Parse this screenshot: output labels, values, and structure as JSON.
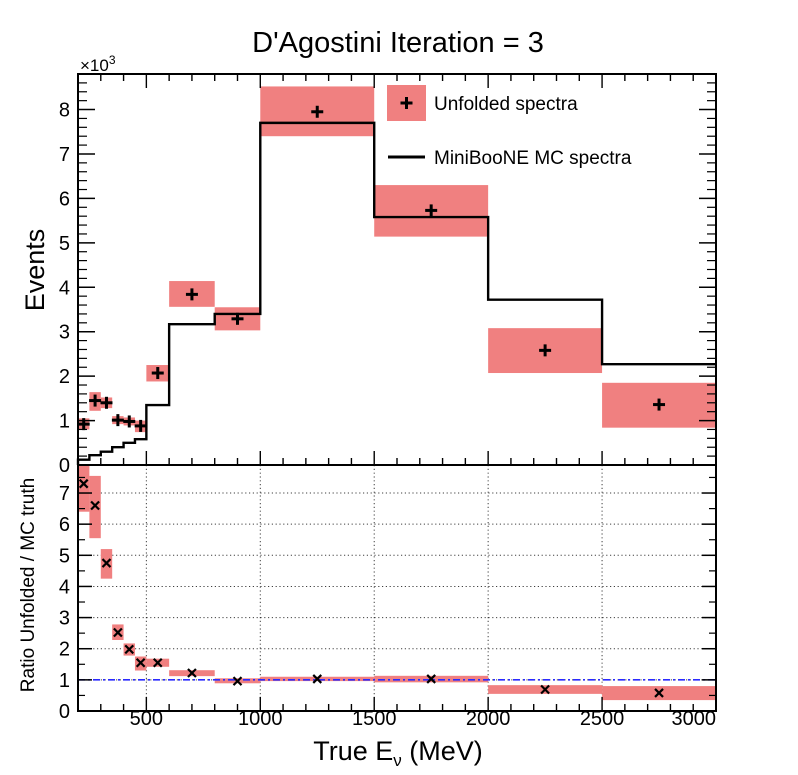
{
  "chart_data": {
    "type": "histogram",
    "title": "D'Agostini Iteration = 3",
    "top_panel": {
      "ylabel": "Events",
      "y_multiplier_label": "×10",
      "y_multiplier_exponent": "3",
      "ylim": [
        0,
        8.8
      ],
      "yticks": [
        0,
        1,
        2,
        3,
        4,
        5,
        6,
        7,
        8
      ],
      "ytick_labels": [
        "0",
        "1",
        "2",
        "3",
        "4",
        "5",
        "6",
        "7",
        "8"
      ],
      "legend_position": "top-right",
      "legend": [
        {
          "label": "Unfolded spectra",
          "style": "marker-with-box"
        },
        {
          "label": "MiniBooNE MC spectra",
          "style": "line"
        }
      ],
      "unfolded": [
        {
          "x_lo": 200,
          "x_hi": 250,
          "value": 0.92,
          "err_lo": 0.8,
          "err_hi": 1.05
        },
        {
          "x_lo": 250,
          "x_hi": 300,
          "value": 1.45,
          "err_lo": 1.22,
          "err_hi": 1.64
        },
        {
          "x_lo": 300,
          "x_hi": 350,
          "value": 1.4,
          "err_lo": 1.28,
          "err_hi": 1.52
        },
        {
          "x_lo": 350,
          "x_hi": 400,
          "value": 1.01,
          "err_lo": 0.92,
          "err_hi": 1.1
        },
        {
          "x_lo": 400,
          "x_hi": 450,
          "value": 0.98,
          "err_lo": 0.89,
          "err_hi": 1.07
        },
        {
          "x_lo": 450,
          "x_hi": 500,
          "value": 0.88,
          "err_lo": 0.74,
          "err_hi": 1.0
        },
        {
          "x_lo": 500,
          "x_hi": 600,
          "value": 2.07,
          "err_lo": 1.88,
          "err_hi": 2.25
        },
        {
          "x_lo": 600,
          "x_hi": 800,
          "value": 3.84,
          "err_lo": 3.56,
          "err_hi": 4.14
        },
        {
          "x_lo": 800,
          "x_hi": 1000,
          "value": 3.29,
          "err_lo": 3.03,
          "err_hi": 3.55
        },
        {
          "x_lo": 1000,
          "x_hi": 1500,
          "value": 7.95,
          "err_lo": 7.4,
          "err_hi": 8.52
        },
        {
          "x_lo": 1500,
          "x_hi": 2000,
          "value": 5.73,
          "err_lo": 5.14,
          "err_hi": 6.3
        },
        {
          "x_lo": 2000,
          "x_hi": 2500,
          "value": 2.58,
          "err_lo": 2.07,
          "err_hi": 3.08
        },
        {
          "x_lo": 2500,
          "x_hi": 3000,
          "value": 1.36,
          "err_lo": 0.84,
          "err_hi": 1.85
        }
      ],
      "mc_spectrum": {
        "edges": [
          200,
          250,
          300,
          350,
          400,
          450,
          500,
          600,
          800,
          1000,
          1500,
          2000,
          2500,
          3000
        ],
        "values": [
          0.12,
          0.22,
          0.3,
          0.4,
          0.5,
          0.58,
          1.35,
          3.17,
          3.4,
          7.7,
          5.58,
          3.72,
          2.27
        ]
      }
    },
    "bottom_panel": {
      "ylabel": "Ratio Unfolded / MC truth",
      "ylim": [
        0,
        7.9
      ],
      "yticks": [
        0,
        1,
        2,
        3,
        4,
        5,
        6,
        7
      ],
      "ytick_labels": [
        "0",
        "1",
        "2",
        "3",
        "4",
        "5",
        "6",
        "7"
      ],
      "grid": true,
      "reference_line": 1.0,
      "reference_line_style": "blue dash-dot",
      "ratios": [
        {
          "x_lo": 200,
          "x_hi": 250,
          "value": 7.3,
          "err_lo": 6.4,
          "err_hi": 7.9
        },
        {
          "x_lo": 250,
          "x_hi": 300,
          "value": 6.6,
          "err_lo": 5.55,
          "err_hi": 7.55
        },
        {
          "x_lo": 300,
          "x_hi": 350,
          "value": 4.75,
          "err_lo": 4.25,
          "err_hi": 5.2
        },
        {
          "x_lo": 350,
          "x_hi": 400,
          "value": 2.52,
          "err_lo": 2.28,
          "err_hi": 2.78
        },
        {
          "x_lo": 400,
          "x_hi": 450,
          "value": 1.98,
          "err_lo": 1.78,
          "err_hi": 2.17
        },
        {
          "x_lo": 450,
          "x_hi": 500,
          "value": 1.55,
          "err_lo": 1.3,
          "err_hi": 1.75
        },
        {
          "x_lo": 500,
          "x_hi": 600,
          "value": 1.55,
          "err_lo": 1.42,
          "err_hi": 1.68
        },
        {
          "x_lo": 600,
          "x_hi": 800,
          "value": 1.22,
          "err_lo": 1.12,
          "err_hi": 1.31
        },
        {
          "x_lo": 800,
          "x_hi": 1000,
          "value": 0.96,
          "err_lo": 0.89,
          "err_hi": 1.05
        },
        {
          "x_lo": 1000,
          "x_hi": 1500,
          "value": 1.03,
          "err_lo": 0.96,
          "err_hi": 1.1
        },
        {
          "x_lo": 1500,
          "x_hi": 2000,
          "value": 1.03,
          "err_lo": 0.92,
          "err_hi": 1.13
        },
        {
          "x_lo": 2000,
          "x_hi": 2500,
          "value": 0.69,
          "err_lo": 0.55,
          "err_hi": 0.83
        },
        {
          "x_lo": 2500,
          "x_hi": 3000,
          "value": 0.58,
          "err_lo": 0.35,
          "err_hi": 0.8
        }
      ]
    },
    "xaxis": {
      "xlabel_main": "True E",
      "xlabel_sub": "ν",
      "xlabel_unit": " (MeV)",
      "xlim": [
        200,
        3000
      ],
      "xticks": [
        500,
        1000,
        1500,
        2000,
        2500,
        3000
      ],
      "xtick_labels": [
        "500",
        "1000",
        "1500",
        "2000",
        "2500",
        "3000"
      ]
    },
    "colors": {
      "error_box": "#f08080",
      "mc_line": "#000000",
      "marker": "#000000",
      "reference_line": "#2a2aff"
    }
  }
}
